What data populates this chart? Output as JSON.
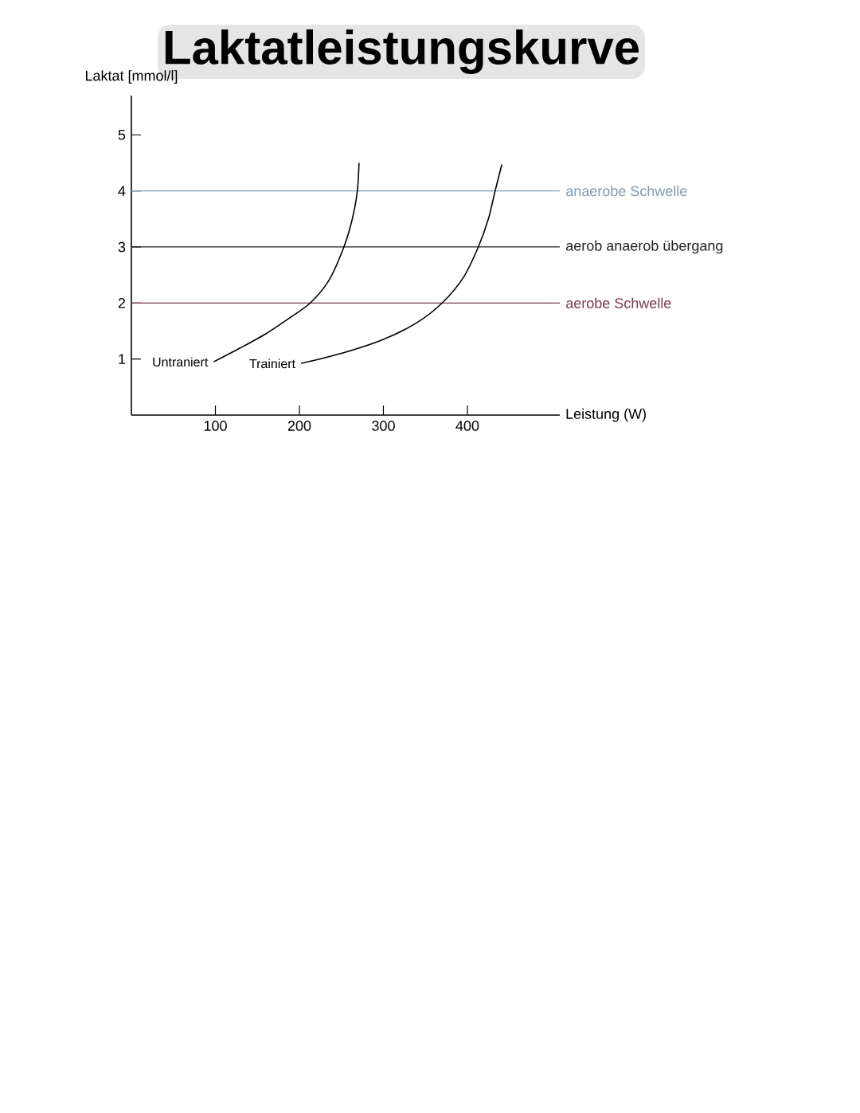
{
  "chart_data": {
    "type": "line",
    "title": "Laktatleistungskurve",
    "xlabel": "Leistung (W)",
    "ylabel": "Laktat [mmol/l]",
    "xlim": [
      0,
      510
    ],
    "ylim": [
      0,
      5.7
    ],
    "xticks": [
      100,
      200,
      300,
      400
    ],
    "yticks": [
      1,
      2,
      3,
      4,
      5
    ],
    "grid": false,
    "marker": "none",
    "line_style": "solid",
    "series": [
      {
        "name": "Untraniert",
        "color": "#000000",
        "x": [
          98,
          130,
          160,
          190,
          213,
          235,
          253,
          263,
          269,
          271
        ],
        "values": [
          0.95,
          1.2,
          1.45,
          1.75,
          2.0,
          2.4,
          3.0,
          3.5,
          4.0,
          4.5
        ]
      },
      {
        "name": "Trainiert",
        "color": "#000000",
        "x": [
          202,
          250,
          300,
          340,
          370,
          395,
          413,
          425,
          433,
          441
        ],
        "values": [
          0.92,
          1.1,
          1.35,
          1.65,
          2.0,
          2.45,
          3.0,
          3.5,
          4.0,
          4.47
        ]
      }
    ],
    "ref_lines": [
      {
        "axis": "y",
        "value": 4,
        "label": "anaerobe Schwelle",
        "color": "#7f9bb5"
      },
      {
        "axis": "y",
        "value": 3,
        "label": "aerob anaerob übergang",
        "color": "#222222"
      },
      {
        "axis": "y",
        "value": 2,
        "label": "aerobe Schwelle",
        "color": "#7a3a50"
      }
    ]
  }
}
